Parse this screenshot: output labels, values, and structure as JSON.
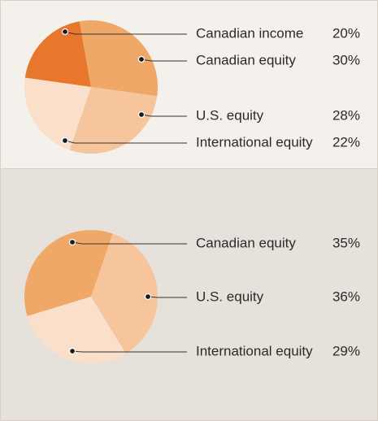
{
  "chart_data": [
    {
      "type": "pie",
      "categories": [
        "Canadian income",
        "Canadian equity",
        "U.S. equity",
        "International equity"
      ],
      "values": [
        20,
        30,
        28,
        22
      ],
      "value_labels": [
        "20%",
        "30%",
        "28%",
        "22%"
      ],
      "colors": [
        "#e8772e",
        "#f0a868",
        "#f6c59c",
        "#fae0ca"
      ]
    },
    {
      "type": "pie",
      "categories": [
        "Canadian equity",
        "U.S. equity",
        "International equity"
      ],
      "values": [
        35,
        36,
        29
      ],
      "value_labels": [
        "35%",
        "36%",
        "29%"
      ],
      "colors": [
        "#f0a868",
        "#f6c59c",
        "#fae0ca"
      ]
    }
  ]
}
